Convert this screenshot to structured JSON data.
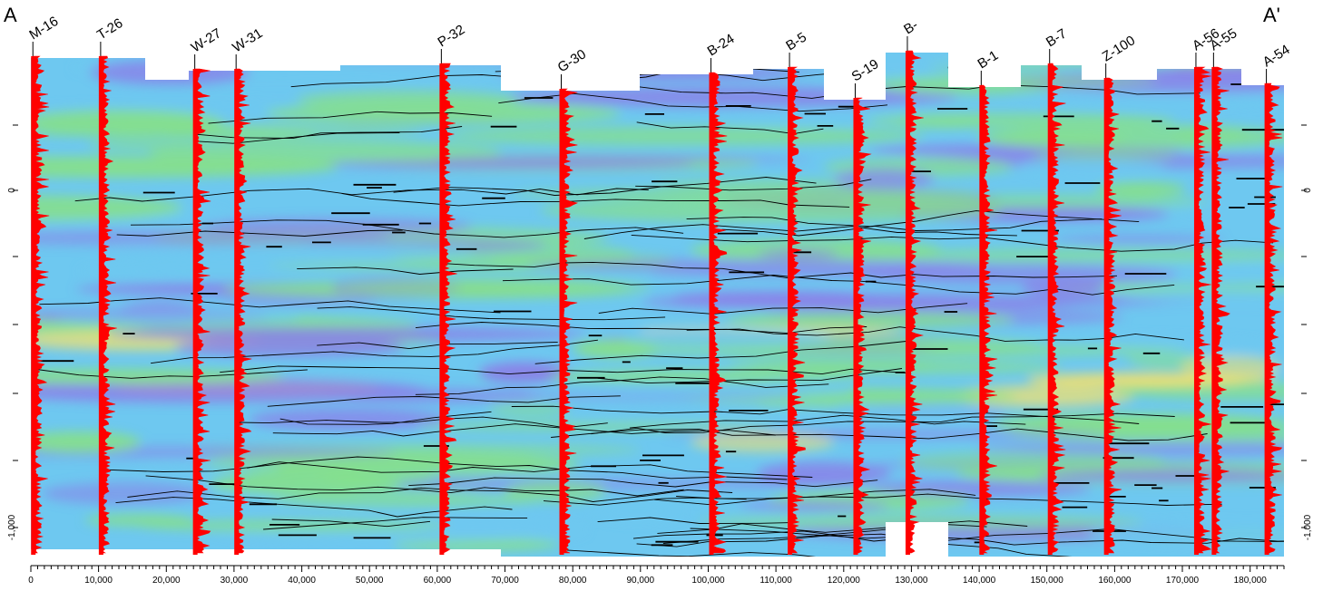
{
  "section": {
    "start_label": "A",
    "end_label": "A'"
  },
  "x_axis": {
    "min": 0,
    "max": 185000,
    "ticks": [
      "0",
      "10,000",
      "20,000",
      "30,000",
      "40,000",
      "50,000",
      "60,000",
      "70,000",
      "80,000",
      "90,000",
      "100,000",
      "110,000",
      "120,000",
      "130,000",
      "140,000",
      "150,000",
      "160,000",
      "170,000",
      "180,000"
    ]
  },
  "y_axis": {
    "ticks": [
      "0",
      "-1,000"
    ]
  },
  "wells": [
    {
      "name": "M-16",
      "x": 300
    },
    {
      "name": "T-26",
      "x": 10300
    },
    {
      "name": "W-27",
      "x": 24200
    },
    {
      "name": "W-31",
      "x": 30300
    },
    {
      "name": "P-32",
      "x": 60600
    },
    {
      "name": "G-30",
      "x": 78300
    },
    {
      "name": "B-24",
      "x": 100400
    },
    {
      "name": "B-5",
      "x": 112000
    },
    {
      "name": "S-19",
      "x": 121700
    },
    {
      "name": "B-",
      "x": 129400
    },
    {
      "name": "B-1",
      "x": 140300
    },
    {
      "name": "B-7",
      "x": 150400
    },
    {
      "name": "Z-100",
      "x": 158700
    },
    {
      "name": "A-56",
      "x": 172000
    },
    {
      "name": "A-55",
      "x": 174600
    },
    {
      "name": "A-54",
      "x": 182400
    }
  ],
  "colors": {
    "log_trace": "#ff0000",
    "contour_line": "#000000",
    "fill_low": "#8a80e8",
    "fill_mid": "#6ec8f0",
    "fill_high": "#86e08a",
    "fill_peak": "#f0e070"
  }
}
